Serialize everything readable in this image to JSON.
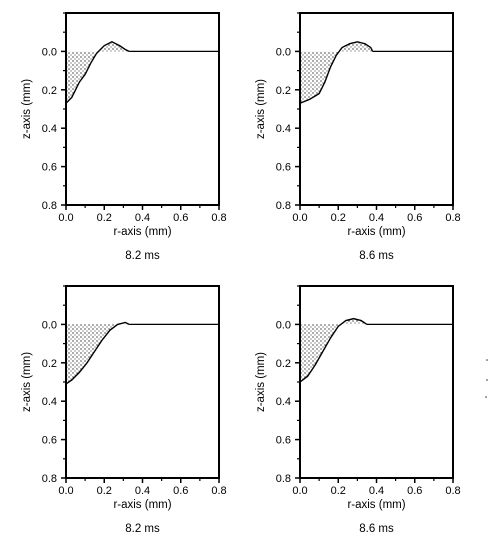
{
  "chart_data": [
    {
      "type": "line",
      "xlabel": "r-axis (mm)",
      "ylabel": "z-axis (mm)",
      "caption": "8.2 ms",
      "xlim": [
        0,
        0.8
      ],
      "ylim": [
        0.8,
        -0.2
      ],
      "x_ticks": [
        "0.0",
        "0.2",
        "0.4",
        "0.6",
        "0.8"
      ],
      "y_ticks": [
        "0.0",
        "0.2",
        "0.4",
        "0.6",
        "0.8"
      ],
      "surface": {
        "x": [
          0.33,
          0.8
        ],
        "y": [
          0.0,
          0.0
        ]
      },
      "melt_pool_boundary": {
        "x": [
          0.0,
          0.03,
          0.05,
          0.07,
          0.1,
          0.13,
          0.16,
          0.2,
          0.24,
          0.28,
          0.31,
          0.33
        ],
        "y": [
          0.27,
          0.24,
          0.2,
          0.16,
          0.12,
          0.06,
          0.01,
          -0.03,
          -0.05,
          -0.03,
          -0.01,
          0.0
        ]
      }
    },
    {
      "type": "line",
      "xlabel": "r-axis (mm)",
      "ylabel": "z-axis (mm)",
      "caption": "8.6 ms",
      "xlim": [
        0,
        0.8
      ],
      "ylim": [
        0.8,
        -0.2
      ],
      "x_ticks": [
        "0.0",
        "0.2",
        "0.4",
        "0.6",
        "0.8"
      ],
      "y_ticks": [
        "0.0",
        "0.2",
        "0.4",
        "0.6",
        "0.8"
      ],
      "surface": {
        "x": [
          0.38,
          0.8
        ],
        "y": [
          0.0,
          0.0
        ]
      },
      "melt_pool_boundary": {
        "x": [
          0.0,
          0.05,
          0.1,
          0.13,
          0.16,
          0.19,
          0.22,
          0.26,
          0.3,
          0.34,
          0.37,
          0.38
        ],
        "y": [
          0.27,
          0.25,
          0.22,
          0.16,
          0.08,
          0.02,
          -0.02,
          -0.04,
          -0.05,
          -0.04,
          -0.02,
          0.0
        ]
      }
    },
    {
      "type": "line",
      "xlabel": "r-axis (mm)",
      "ylabel": "z-axis (mm)",
      "caption": "8.2 ms",
      "xlim": [
        0,
        0.8
      ],
      "ylim": [
        0.8,
        -0.2
      ],
      "x_ticks": [
        "0.0",
        "0.2",
        "0.4",
        "0.6",
        "0.8"
      ],
      "y_ticks": [
        "0.0",
        "0.2",
        "0.4",
        "0.6",
        "0.8"
      ],
      "surface": {
        "x": [
          0.33,
          0.8
        ],
        "y": [
          0.0,
          0.0
        ]
      },
      "melt_pool_boundary": {
        "x": [
          0.0,
          0.03,
          0.07,
          0.11,
          0.15,
          0.19,
          0.23,
          0.27,
          0.31,
          0.33
        ],
        "y": [
          0.31,
          0.29,
          0.25,
          0.2,
          0.14,
          0.08,
          0.03,
          0.0,
          -0.01,
          0.0
        ]
      }
    },
    {
      "type": "line",
      "xlabel": "r-axis (mm)",
      "ylabel": "z-axis (mm)",
      "caption": "8.6 ms",
      "xlim": [
        0,
        0.8
      ],
      "ylim": [
        0.8,
        -0.2
      ],
      "x_ticks": [
        "0.0",
        "0.2",
        "0.4",
        "0.6",
        "0.8"
      ],
      "y_ticks": [
        "0.0",
        "0.2",
        "0.4",
        "0.6",
        "0.8"
      ],
      "surface": {
        "x": [
          0.35,
          0.8
        ],
        "y": [
          0.0,
          0.0
        ]
      },
      "melt_pool_boundary": {
        "x": [
          0.0,
          0.04,
          0.08,
          0.12,
          0.16,
          0.2,
          0.24,
          0.28,
          0.32,
          0.35
        ],
        "y": [
          0.3,
          0.27,
          0.21,
          0.14,
          0.07,
          0.01,
          -0.02,
          -0.03,
          -0.02,
          0.0
        ]
      }
    }
  ]
}
